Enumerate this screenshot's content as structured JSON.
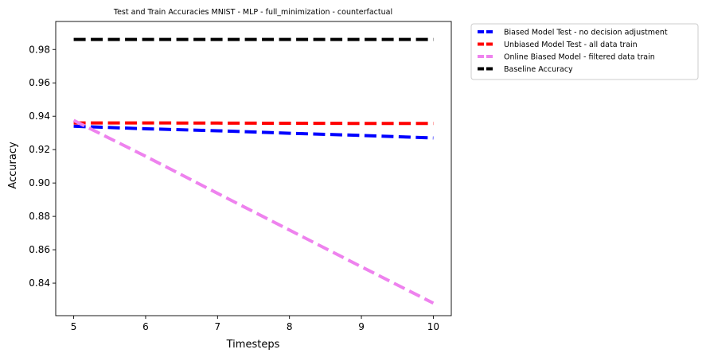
{
  "chart_data": {
    "type": "line",
    "title": "Test and Train Accuracies MNIST - MLP - full_minimization - counterfactual",
    "xlabel": "Timesteps",
    "ylabel": "Accuracy",
    "x": [
      5,
      6,
      7,
      8,
      9,
      10
    ],
    "xlim": [
      4.75,
      10.25
    ],
    "ylim": [
      0.8205,
      0.9968
    ],
    "xticks": [
      5,
      6,
      7,
      8,
      9,
      10
    ],
    "yticks": [
      0.84,
      0.86,
      0.88,
      0.9,
      0.92,
      0.94,
      0.96,
      0.98
    ],
    "grid": false,
    "legend_position": "outside-upper-right",
    "series": [
      {
        "name": "Biased Model Test - no decision adjustment",
        "color": "#0000ff",
        "values": [
          0.934,
          0.9325,
          0.9313,
          0.9298,
          0.9285,
          0.927
        ]
      },
      {
        "name": "Unbiased Model Test - all data train",
        "color": "#ff0000",
        "values": [
          0.936,
          0.936,
          0.9359,
          0.9358,
          0.9357,
          0.9357
        ]
      },
      {
        "name": "Online Biased Model - filtered data train",
        "color": "#ee82ee",
        "values": [
          0.9375,
          0.916,
          0.8938,
          0.8718,
          0.8498,
          0.828
        ]
      },
      {
        "name": "Baseline Accuracy",
        "color": "#000000",
        "values": [
          0.986,
          0.986,
          0.986,
          0.986,
          0.986,
          0.986
        ]
      }
    ]
  }
}
